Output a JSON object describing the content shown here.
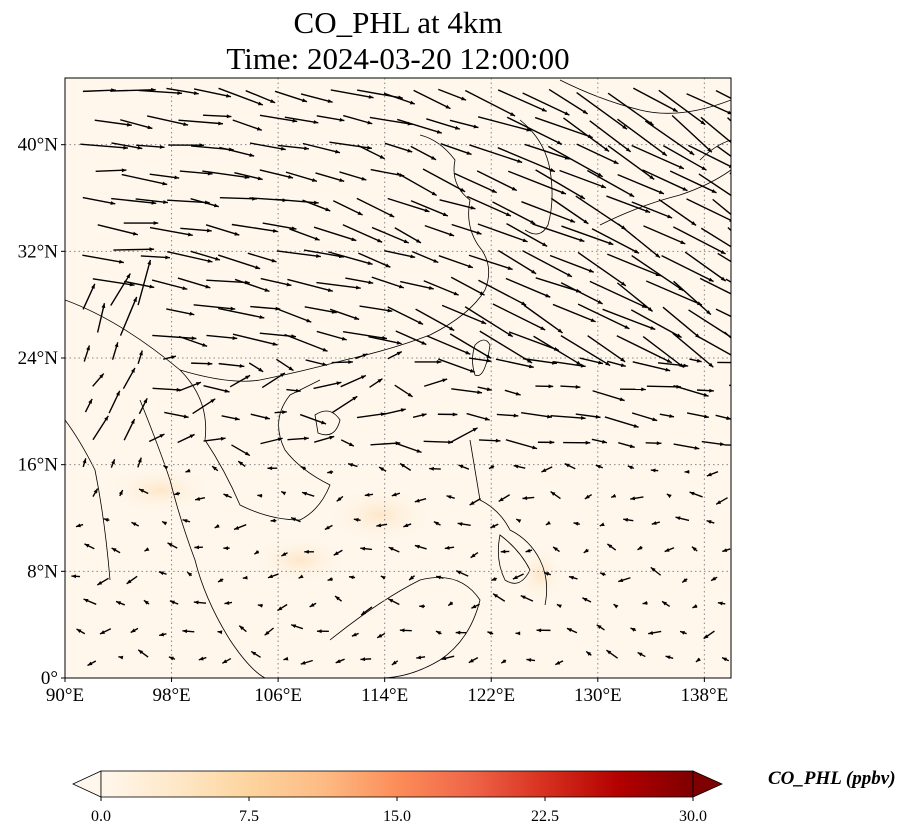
{
  "title": {
    "line1": "CO_PHL at 4km",
    "line2": "Time: 2024-03-20 12:00:00"
  },
  "map": {
    "lon_range": [
      90,
      140
    ],
    "lat_range": [
      0,
      45
    ],
    "x_ticks": [
      {
        "value": 90,
        "label": "90°E"
      },
      {
        "value": 98,
        "label": "98°E"
      },
      {
        "value": 106,
        "label": "106°E"
      },
      {
        "value": 114,
        "label": "114°E"
      },
      {
        "value": 122,
        "label": "122°E"
      },
      {
        "value": 130,
        "label": "130°E"
      },
      {
        "value": 138,
        "label": "138°E"
      }
    ],
    "y_ticks": [
      {
        "value": 0,
        "label": "0°"
      },
      {
        "value": 8,
        "label": "8°N"
      },
      {
        "value": 16,
        "label": "16°N"
      },
      {
        "value": 24,
        "label": "24°N"
      },
      {
        "value": 32,
        "label": "32°N"
      },
      {
        "value": 40,
        "label": "40°N"
      }
    ],
    "background_color": "#fff7ec",
    "grid": true,
    "grid_style": "dotted"
  },
  "colorbar": {
    "min": 0,
    "max": 30,
    "ticks": [
      "0.0",
      "7.5",
      "15.0",
      "22.5",
      "30.0"
    ],
    "tick_values": [
      0,
      7.5,
      15,
      22.5,
      30
    ],
    "label": "CO_PHL (ppbv)",
    "colormap": "OrRd",
    "colors": [
      "#fff7ec",
      "#fee8c8",
      "#fdd49e",
      "#fdbb84",
      "#fc8d59",
      "#ef6548",
      "#d7301f",
      "#b30000",
      "#7f0000"
    ],
    "extend": "both"
  }
}
